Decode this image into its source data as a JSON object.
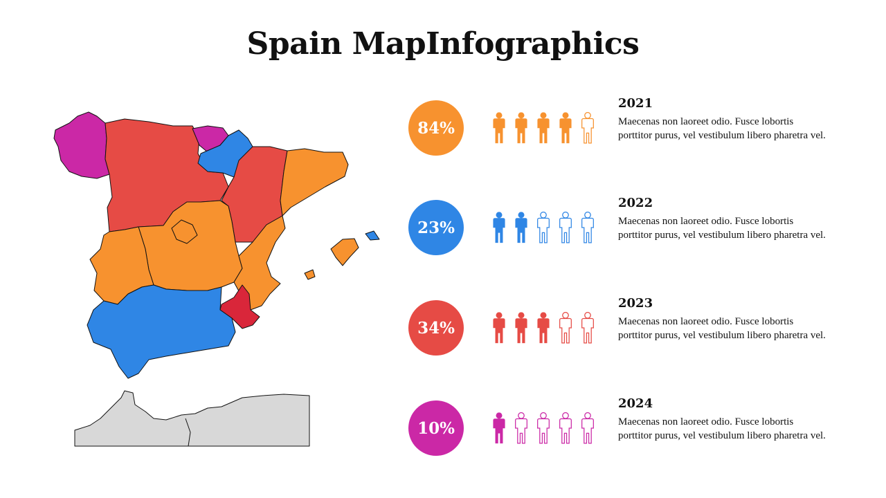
{
  "title": "Spain MapInfographics",
  "colors": {
    "orange": "#F7922F",
    "blue": "#2F86E5",
    "red": "#E64B45",
    "magenta": "#CB28A6",
    "crimson": "#D9263A",
    "africa": "#D8D8D8"
  },
  "icon": "person-icon",
  "rows": [
    {
      "percent": "84%",
      "filled": 4,
      "total": 5,
      "year": "2021",
      "text": "Maecenas non laoreet odio. Fusce lobortis porttitor purus, vel vestibulum libero pharetra vel.",
      "color": "#F7922F"
    },
    {
      "percent": "23%",
      "filled": 2,
      "total": 5,
      "year": "2022",
      "text": "Maecenas non laoreet odio. Fusce lobortis porttitor purus, vel vestibulum libero pharetra vel.",
      "color": "#2F86E5"
    },
    {
      "percent": "34%",
      "filled": 3,
      "total": 5,
      "year": "2023",
      "text": "Maecenas non laoreet odio. Fusce lobortis porttitor purus, vel vestibulum libero pharetra vel.",
      "color": "#E64B45"
    },
    {
      "percent": "10%",
      "filled": 1,
      "total": 5,
      "year": "2024",
      "text": "Maecenas non laoreet odio. Fusce lobortis porttitor purus, vel vestibulum libero pharetra vel.",
      "color": "#CB28A6"
    }
  ]
}
